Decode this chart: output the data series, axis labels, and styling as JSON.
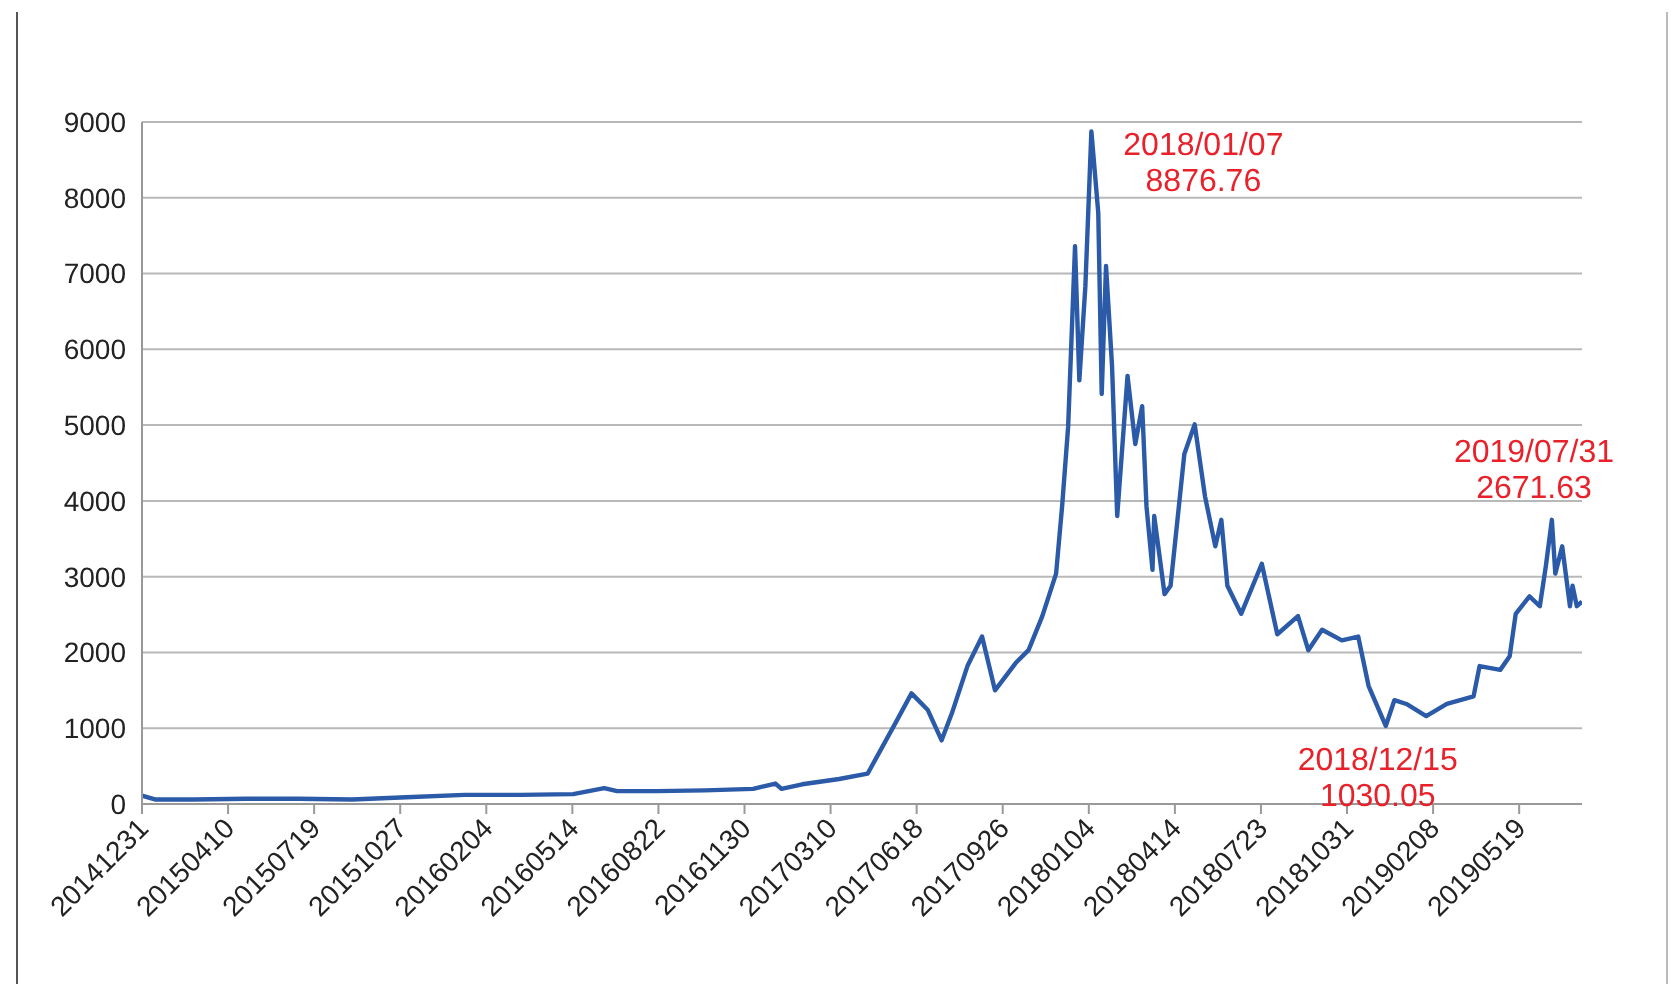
{
  "chart_data": {
    "type": "line",
    "x": [
      "2014-12-31",
      "2015-01-15",
      "2015-03-01",
      "2015-05-01",
      "2015-07-01",
      "2015-09-01",
      "2015-11-03",
      "2016-01-10",
      "2016-03-15",
      "2016-05-15",
      "2016-06-20",
      "2016-07-05",
      "2016-08-20",
      "2016-10-15",
      "2016-12-10",
      "2017-01-05",
      "2017-01-12",
      "2017-02-05",
      "2017-03-20",
      "2017-04-22",
      "2017-05-24",
      "2017-06-12",
      "2017-07-01",
      "2017-07-17",
      "2017-07-29",
      "2017-08-16",
      "2017-09-02",
      "2017-09-17",
      "2017-10-11",
      "2017-10-26",
      "2017-11-11",
      "2017-11-27",
      "2017-12-04",
      "2017-12-11",
      "2017-12-19",
      "2017-12-24",
      "2017-12-31",
      "2018-01-07",
      "2018-01-15",
      "2018-01-19",
      "2018-01-24",
      "2018-01-31",
      "2018-02-06",
      "2018-02-18",
      "2018-02-27",
      "2018-03-07",
      "2018-03-12",
      "2018-03-19",
      "2018-03-21",
      "2018-04-02",
      "2018-04-09",
      "2018-04-25",
      "2018-05-07",
      "2018-05-19",
      "2018-05-31",
      "2018-06-07",
      "2018-06-14",
      "2018-06-30",
      "2018-07-24",
      "2018-08-11",
      "2018-09-04",
      "2018-09-16",
      "2018-10-02",
      "2018-10-25",
      "2018-11-13",
      "2018-11-25",
      "2018-12-15",
      "2018-12-25",
      "2019-01-08",
      "2019-01-31",
      "2019-02-24",
      "2019-03-27",
      "2019-04-03",
      "2019-04-27",
      "2019-05-08",
      "2019-05-15",
      "2019-05-31",
      "2019-06-12",
      "2019-06-19",
      "2019-06-26",
      "2019-06-30",
      "2019-07-08",
      "2019-07-17",
      "2019-07-20",
      "2019-07-25",
      "2019-07-31"
    ],
    "series": [
      {
        "color": "#2a5aa8",
        "values": [
          110,
          60,
          60,
          70,
          70,
          60,
          90,
          120,
          120,
          130,
          210,
          170,
          170,
          180,
          200,
          270,
          200,
          260,
          330,
          400,
          1060,
          1460,
          1240,
          840,
          1200,
          1820,
          2210,
          1500,
          1860,
          2030,
          2480,
          3040,
          3930,
          4980,
          7360,
          5590,
          6830,
          8876.76,
          7800,
          5410,
          7100,
          5780,
          3800,
          5650,
          4750,
          5250,
          3930,
          3090,
          3800,
          2770,
          2880,
          4620,
          5010,
          4060,
          3400,
          3750,
          2880,
          2510,
          3170,
          2240,
          2480,
          2030,
          2300,
          2160,
          2210,
          1560,
          1030.05,
          1370,
          1320,
          1160,
          1320,
          1420,
          1820,
          1770,
          1950,
          2510,
          2740,
          2610,
          3140,
          3750,
          3040,
          3400,
          2610,
          2880,
          2610,
          2671.63
        ]
      }
    ],
    "xlim": [
      "2014-12-31",
      "2019-07-31"
    ],
    "xticks": [
      {
        "value": "2014-12-31",
        "label": "20141231"
      },
      {
        "value": "2015-04-10",
        "label": "20150410"
      },
      {
        "value": "2015-07-19",
        "label": "20150719"
      },
      {
        "value": "2015-10-27",
        "label": "20151027"
      },
      {
        "value": "2016-02-04",
        "label": "20160204"
      },
      {
        "value": "2016-05-14",
        "label": "20160514"
      },
      {
        "value": "2016-08-22",
        "label": "20160822"
      },
      {
        "value": "2016-11-30",
        "label": "20161130"
      },
      {
        "value": "2017-03-10",
        "label": "20170310"
      },
      {
        "value": "2017-06-18",
        "label": "20170618"
      },
      {
        "value": "2017-09-26",
        "label": "20170926"
      },
      {
        "value": "2018-01-04",
        "label": "20180104"
      },
      {
        "value": "2018-04-14",
        "label": "20180414"
      },
      {
        "value": "2018-07-23",
        "label": "20180723"
      },
      {
        "value": "2018-10-31",
        "label": "20181031"
      },
      {
        "value": "2019-02-08",
        "label": "20190208"
      },
      {
        "value": "2019-05-19",
        "label": "20190519"
      }
    ],
    "ylim": [
      0,
      9000
    ],
    "yticks": [
      0,
      1000,
      2000,
      3000,
      4000,
      5000,
      6000,
      7000,
      8000,
      9000
    ],
    "grid": "y",
    "legend": false,
    "marker": "none",
    "line_style": "solid",
    "annotations": [
      {
        "text": "2018/01/07\n8876.76",
        "x": "2018-01-07",
        "y": 8876.76
      },
      {
        "text": "2018/12/15\n1030.05",
        "x": "2018-12-15",
        "y": 1030.05
      },
      "2019/07/31\n2671.63"
    ]
  }
}
